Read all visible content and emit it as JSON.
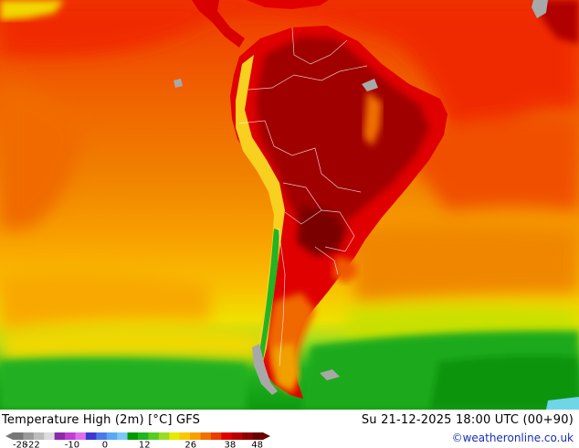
{
  "title": "Temperature High (2m) [°C] GFS",
  "valid_time": "Su 21-12-2025 18:00 UTC (00+90)",
  "credit": "©weatheronline.co.uk",
  "legend": {
    "tick_labels": [
      "-28",
      "-22",
      "-10",
      "0",
      "12",
      "26",
      "38",
      "48"
    ],
    "tick_values": [
      -28,
      -22,
      -10,
      0,
      12,
      26,
      38,
      48
    ],
    "range": [
      -28,
      48
    ],
    "colors": [
      "#777777",
      "#9a9a9a",
      "#bcbcbc",
      "#dcdcdc",
      "#8a2aa8",
      "#c03fd0",
      "#e070e8",
      "#3a3ad0",
      "#4a7ae8",
      "#5aa8f0",
      "#7ac8f8",
      "#009a00",
      "#22b422",
      "#55cc22",
      "#99dd22",
      "#e8e800",
      "#f8c800",
      "#f8a000",
      "#f07000",
      "#e83e00",
      "#e00000",
      "#b80000",
      "#900000",
      "#6a0000"
    ]
  },
  "colors": {
    "ocean_warm": "#f03c00",
    "ocean_orange": "#f07a00",
    "ocean_light_orange": "#f89a00",
    "ocean_yellow": "#f8c800",
    "cold_green": "#22b422",
    "land_hot": "#e00000",
    "land_very_hot": "#9c0000",
    "andes_cool": "#f8d820",
    "ice": "#a8a8a8",
    "credit_link": "#1a2fb0"
  }
}
